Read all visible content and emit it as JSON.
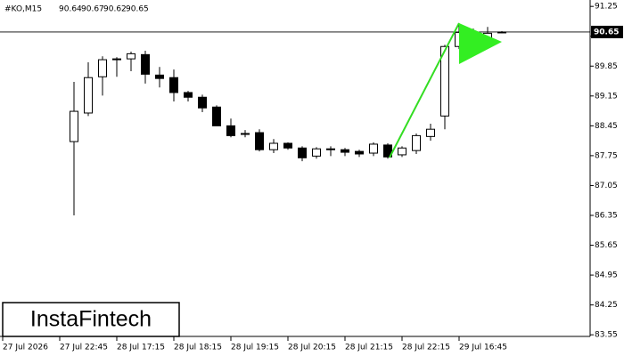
{
  "chart_data": {
    "type": "candlestick",
    "symbol": "#KO,M15",
    "ylim": [
      83.47,
      91.4
    ],
    "yticks": [
      91.25,
      90.55,
      89.85,
      89.15,
      88.45,
      87.75,
      87.05,
      86.35,
      85.65,
      84.95,
      84.25,
      83.55
    ],
    "x_labels": [
      "27 Jul 2026",
      "27 Jul 22:45",
      "28 Jul 17:15",
      "28 Jul 18:15",
      "28 Jul 19:15",
      "28 Jul 20:15",
      "28 Jul 21:15",
      "28 Jul 22:15",
      "29 Jul 16:45"
    ],
    "open": [
      88.08,
      88.75,
      89.6,
      90.0,
      90.02,
      90.12,
      89.64,
      89.58,
      89.23,
      89.12,
      88.89,
      88.45,
      88.27,
      88.29,
      87.89,
      88.04,
      87.93,
      87.74,
      87.89,
      87.89,
      87.85,
      87.81,
      88.0,
      87.77,
      87.87,
      88.2,
      88.68,
      90.31,
      90.64,
      90.42,
      90.64
    ],
    "high": [
      89.48,
      89.94,
      90.08,
      90.06,
      90.19,
      90.21,
      89.83,
      89.77,
      89.27,
      89.18,
      88.93,
      88.62,
      88.35,
      88.37,
      88.14,
      88.06,
      87.97,
      87.95,
      87.97,
      87.93,
      87.89,
      88.06,
      88.04,
      87.97,
      88.27,
      88.5,
      90.35,
      90.85,
      90.73,
      90.77,
      90.67
    ],
    "low": [
      86.35,
      88.68,
      89.16,
      89.6,
      89.73,
      89.44,
      89.35,
      89.02,
      89.02,
      88.77,
      88.45,
      88.18,
      88.18,
      87.85,
      87.81,
      87.89,
      87.62,
      87.68,
      87.74,
      87.74,
      87.72,
      87.74,
      87.68,
      87.72,
      87.79,
      88.1,
      88.37,
      90.25,
      90.31,
      90.31,
      90.62
    ],
    "close": [
      88.79,
      89.58,
      90.0,
      90.02,
      90.14,
      89.66,
      89.56,
      89.23,
      89.12,
      88.87,
      88.45,
      88.22,
      88.25,
      87.89,
      88.04,
      87.93,
      87.7,
      87.91,
      87.91,
      87.83,
      87.79,
      88.02,
      87.72,
      87.93,
      88.22,
      88.37,
      90.31,
      90.64,
      90.42,
      90.62,
      90.65
    ],
    "watermark": "InstaFintech"
  }
}
